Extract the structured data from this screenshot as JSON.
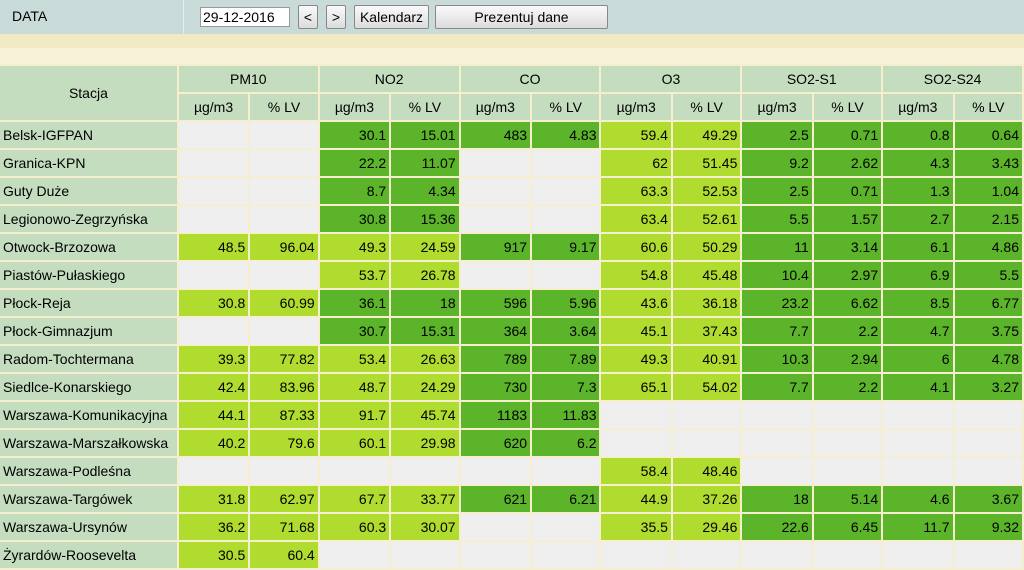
{
  "controls": {
    "data_label": "DATA",
    "date_value": "29-12-2016",
    "prev_label": "<",
    "next_label": ">",
    "calendar_label": "Kalendarz",
    "present_label": "Prezentuj dane"
  },
  "colors": {
    "empty": "#efefef",
    "light": "#b0dc2f",
    "dark": "#5cb42a",
    "header": "#c4ddbf"
  },
  "table": {
    "station_header": "Stacja",
    "pollutants": [
      "PM10",
      "NO2",
      "CO",
      "O3",
      "SO2-S1",
      "SO2-S24"
    ],
    "unit_labels": [
      "µg/m3",
      "% LV"
    ],
    "rows": [
      {
        "name": "Belsk-IGFPAN",
        "cells": [
          [
            "",
            "e"
          ],
          [
            "",
            "e"
          ],
          [
            "30.1",
            "d"
          ],
          [
            "15.01",
            "d"
          ],
          [
            "483",
            "d"
          ],
          [
            "4.83",
            "d"
          ],
          [
            "59.4",
            "l"
          ],
          [
            "49.29",
            "l"
          ],
          [
            "2.5",
            "d"
          ],
          [
            "0.71",
            "d"
          ],
          [
            "0.8",
            "d"
          ],
          [
            "0.64",
            "d"
          ]
        ]
      },
      {
        "name": "Granica-KPN",
        "cells": [
          [
            "",
            "e"
          ],
          [
            "",
            "e"
          ],
          [
            "22.2",
            "d"
          ],
          [
            "11.07",
            "d"
          ],
          [
            "",
            "e"
          ],
          [
            "",
            "e"
          ],
          [
            "62",
            "l"
          ],
          [
            "51.45",
            "l"
          ],
          [
            "9.2",
            "d"
          ],
          [
            "2.62",
            "d"
          ],
          [
            "4.3",
            "d"
          ],
          [
            "3.43",
            "d"
          ]
        ]
      },
      {
        "name": "Guty Duże",
        "cells": [
          [
            "",
            "e"
          ],
          [
            "",
            "e"
          ],
          [
            "8.7",
            "d"
          ],
          [
            "4.34",
            "d"
          ],
          [
            "",
            "e"
          ],
          [
            "",
            "e"
          ],
          [
            "63.3",
            "l"
          ],
          [
            "52.53",
            "l"
          ],
          [
            "2.5",
            "d"
          ],
          [
            "0.71",
            "d"
          ],
          [
            "1.3",
            "d"
          ],
          [
            "1.04",
            "d"
          ]
        ]
      },
      {
        "name": "Legionowo-Zegrzyńska",
        "cells": [
          [
            "",
            "e"
          ],
          [
            "",
            "e"
          ],
          [
            "30.8",
            "d"
          ],
          [
            "15.36",
            "d"
          ],
          [
            "",
            "e"
          ],
          [
            "",
            "e"
          ],
          [
            "63.4",
            "l"
          ],
          [
            "52.61",
            "l"
          ],
          [
            "5.5",
            "d"
          ],
          [
            "1.57",
            "d"
          ],
          [
            "2.7",
            "d"
          ],
          [
            "2.15",
            "d"
          ]
        ]
      },
      {
        "name": "Otwock-Brzozowa",
        "cells": [
          [
            "48.5",
            "l"
          ],
          [
            "96.04",
            "l"
          ],
          [
            "49.3",
            "l"
          ],
          [
            "24.59",
            "l"
          ],
          [
            "917",
            "d"
          ],
          [
            "9.17",
            "d"
          ],
          [
            "60.6",
            "l"
          ],
          [
            "50.29",
            "l"
          ],
          [
            "11",
            "d"
          ],
          [
            "3.14",
            "d"
          ],
          [
            "6.1",
            "d"
          ],
          [
            "4.86",
            "d"
          ]
        ]
      },
      {
        "name": "Piastów-Pułaskiego",
        "cells": [
          [
            "",
            "e"
          ],
          [
            "",
            "e"
          ],
          [
            "53.7",
            "l"
          ],
          [
            "26.78",
            "l"
          ],
          [
            "",
            "e"
          ],
          [
            "",
            "e"
          ],
          [
            "54.8",
            "l"
          ],
          [
            "45.48",
            "l"
          ],
          [
            "10.4",
            "d"
          ],
          [
            "2.97",
            "d"
          ],
          [
            "6.9",
            "d"
          ],
          [
            "5.5",
            "d"
          ]
        ]
      },
      {
        "name": "Płock-Reja",
        "cells": [
          [
            "30.8",
            "l"
          ],
          [
            "60.99",
            "l"
          ],
          [
            "36.1",
            "d"
          ],
          [
            "18",
            "d"
          ],
          [
            "596",
            "d"
          ],
          [
            "5.96",
            "d"
          ],
          [
            "43.6",
            "l"
          ],
          [
            "36.18",
            "l"
          ],
          [
            "23.2",
            "d"
          ],
          [
            "6.62",
            "d"
          ],
          [
            "8.5",
            "d"
          ],
          [
            "6.77",
            "d"
          ]
        ]
      },
      {
        "name": "Płock-Gimnazjum",
        "cells": [
          [
            "",
            "e"
          ],
          [
            "",
            "e"
          ],
          [
            "30.7",
            "d"
          ],
          [
            "15.31",
            "d"
          ],
          [
            "364",
            "d"
          ],
          [
            "3.64",
            "d"
          ],
          [
            "45.1",
            "l"
          ],
          [
            "37.43",
            "l"
          ],
          [
            "7.7",
            "d"
          ],
          [
            "2.2",
            "d"
          ],
          [
            "4.7",
            "d"
          ],
          [
            "3.75",
            "d"
          ]
        ]
      },
      {
        "name": "Radom-Tochtermana",
        "cells": [
          [
            "39.3",
            "l"
          ],
          [
            "77.82",
            "l"
          ],
          [
            "53.4",
            "l"
          ],
          [
            "26.63",
            "l"
          ],
          [
            "789",
            "d"
          ],
          [
            "7.89",
            "d"
          ],
          [
            "49.3",
            "l"
          ],
          [
            "40.91",
            "l"
          ],
          [
            "10.3",
            "d"
          ],
          [
            "2.94",
            "d"
          ],
          [
            "6",
            "d"
          ],
          [
            "4.78",
            "d"
          ]
        ]
      },
      {
        "name": "Siedlce-Konarskiego",
        "cells": [
          [
            "42.4",
            "l"
          ],
          [
            "83.96",
            "l"
          ],
          [
            "48.7",
            "l"
          ],
          [
            "24.29",
            "l"
          ],
          [
            "730",
            "d"
          ],
          [
            "7.3",
            "d"
          ],
          [
            "65.1",
            "l"
          ],
          [
            "54.02",
            "l"
          ],
          [
            "7.7",
            "d"
          ],
          [
            "2.2",
            "d"
          ],
          [
            "4.1",
            "d"
          ],
          [
            "3.27",
            "d"
          ]
        ]
      },
      {
        "name": "Warszawa-Komunikacyjna",
        "cells": [
          [
            "44.1",
            "l"
          ],
          [
            "87.33",
            "l"
          ],
          [
            "91.7",
            "l"
          ],
          [
            "45.74",
            "l"
          ],
          [
            "1183",
            "d"
          ],
          [
            "11.83",
            "d"
          ],
          [
            "",
            "e"
          ],
          [
            "",
            "e"
          ],
          [
            "",
            "e"
          ],
          [
            "",
            "e"
          ],
          [
            "",
            "e"
          ],
          [
            "",
            "e"
          ]
        ]
      },
      {
        "name": "Warszawa-Marszałkowska",
        "cells": [
          [
            "40.2",
            "l"
          ],
          [
            "79.6",
            "l"
          ],
          [
            "60.1",
            "l"
          ],
          [
            "29.98",
            "l"
          ],
          [
            "620",
            "d"
          ],
          [
            "6.2",
            "d"
          ],
          [
            "",
            "e"
          ],
          [
            "",
            "e"
          ],
          [
            "",
            "e"
          ],
          [
            "",
            "e"
          ],
          [
            "",
            "e"
          ],
          [
            "",
            "e"
          ]
        ]
      },
      {
        "name": "Warszawa-Podleśna",
        "cells": [
          [
            "",
            "e"
          ],
          [
            "",
            "e"
          ],
          [
            "",
            "e"
          ],
          [
            "",
            "e"
          ],
          [
            "",
            "e"
          ],
          [
            "",
            "e"
          ],
          [
            "58.4",
            "l"
          ],
          [
            "48.46",
            "l"
          ],
          [
            "",
            "e"
          ],
          [
            "",
            "e"
          ],
          [
            "",
            "e"
          ],
          [
            "",
            "e"
          ]
        ]
      },
      {
        "name": "Warszawa-Targówek",
        "cells": [
          [
            "31.8",
            "l"
          ],
          [
            "62.97",
            "l"
          ],
          [
            "67.7",
            "l"
          ],
          [
            "33.77",
            "l"
          ],
          [
            "621",
            "d"
          ],
          [
            "6.21",
            "d"
          ],
          [
            "44.9",
            "l"
          ],
          [
            "37.26",
            "l"
          ],
          [
            "18",
            "d"
          ],
          [
            "5.14",
            "d"
          ],
          [
            "4.6",
            "d"
          ],
          [
            "3.67",
            "d"
          ]
        ]
      },
      {
        "name": "Warszawa-Ursynów",
        "cells": [
          [
            "36.2",
            "l"
          ],
          [
            "71.68",
            "l"
          ],
          [
            "60.3",
            "l"
          ],
          [
            "30.07",
            "l"
          ],
          [
            "",
            "e"
          ],
          [
            "",
            "e"
          ],
          [
            "35.5",
            "l"
          ],
          [
            "29.46",
            "l"
          ],
          [
            "22.6",
            "d"
          ],
          [
            "6.45",
            "d"
          ],
          [
            "11.7",
            "d"
          ],
          [
            "9.32",
            "d"
          ]
        ]
      },
      {
        "name": "Żyrardów-Roosevelta",
        "cells": [
          [
            "30.5",
            "l"
          ],
          [
            "60.4",
            "l"
          ],
          [
            "",
            "e"
          ],
          [
            "",
            "e"
          ],
          [
            "",
            "e"
          ],
          [
            "",
            "e"
          ],
          [
            "",
            "e"
          ],
          [
            "",
            "e"
          ],
          [
            "",
            "e"
          ],
          [
            "",
            "e"
          ],
          [
            "",
            "e"
          ],
          [
            "",
            "e"
          ]
        ]
      }
    ]
  }
}
